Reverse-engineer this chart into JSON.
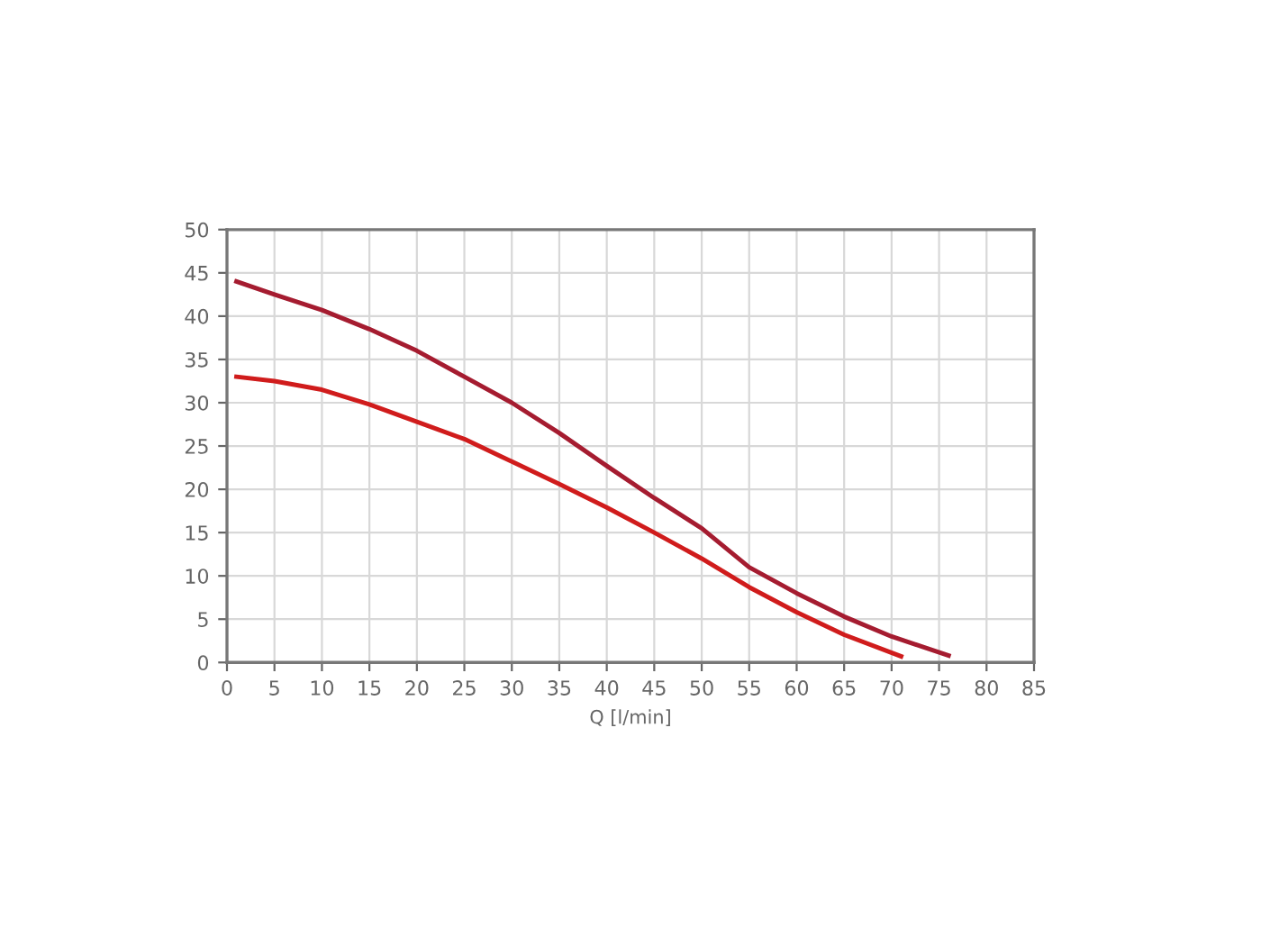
{
  "chart_data": {
    "type": "line",
    "xlabel": "Q [l/min]",
    "series": [
      {
        "color": "#a51c30",
        "x": [
          1,
          5,
          10,
          15,
          20,
          25,
          30,
          35,
          40,
          45,
          50,
          55,
          60,
          65,
          70,
          76
        ],
        "values": [
          44,
          42.5,
          40.7,
          38.5,
          36,
          33,
          30,
          26.5,
          22.7,
          19,
          15.5,
          11,
          8,
          5.3,
          3,
          0.8
        ]
      },
      {
        "color": "#d01c1c",
        "x": [
          1,
          5,
          10,
          15,
          20,
          25,
          30,
          35,
          40,
          45,
          50,
          55,
          60,
          65,
          71
        ],
        "values": [
          33,
          32.5,
          31.5,
          29.8,
          27.8,
          25.8,
          23.2,
          20.6,
          17.9,
          15,
          12,
          8.7,
          5.8,
          3.2,
          0.7
        ]
      }
    ],
    "xlim": [
      0,
      85
    ],
    "xticks": [
      0,
      5,
      10,
      15,
      20,
      25,
      30,
      35,
      40,
      45,
      50,
      55,
      60,
      65,
      70,
      75,
      80,
      85
    ],
    "ylim": [
      0,
      50
    ],
    "yticks": [
      0,
      5,
      10,
      15,
      20,
      25,
      30,
      35,
      40,
      45,
      50
    ],
    "grid": true,
    "marker": "none",
    "line_style": "solid"
  }
}
